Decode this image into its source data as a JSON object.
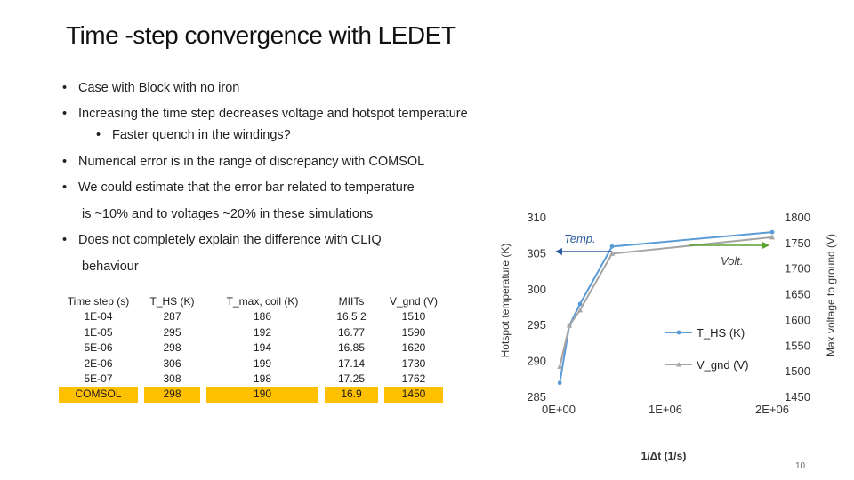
{
  "slide": {
    "title": "Time -step convergence with LEDET",
    "bullets": [
      "Case with Block with no iron",
      "Increasing the time step decreases voltage and hotspot temperature",
      "Faster quench in the windings?",
      "Numerical error is in the range of discrepancy with COMSOL",
      "We could estimate that the error bar related to temperature",
      "is ~10% and to voltages ~20% in these simulations",
      "Does not completely explain the difference with CLIQ",
      "behaviour"
    ],
    "bullet_glyph": "•",
    "page_number": "10"
  },
  "table": {
    "headers": [
      "Time step (s)",
      "T_HS (K)",
      "T_max,  coil (K)",
      "MIITs",
      "V_gnd (V)"
    ],
    "rows": [
      [
        "1E-04",
        "287",
        "186",
        "16.5 2",
        "1510"
      ],
      [
        "1E-05",
        "295",
        "192",
        "16.77",
        "1590"
      ],
      [
        "5E-06",
        "298",
        "194",
        "16.85",
        "1620"
      ],
      [
        "2E-06",
        "306",
        "199",
        "17.14",
        "1730"
      ],
      [
        "5E-07",
        "308",
        "198",
        "17.25",
        "1762"
      ],
      [
        "COMSOL",
        "298",
        "190",
        "16.9",
        "1450"
      ]
    ],
    "highlight_color": "#ffc000"
  },
  "chart_data": {
    "type": "line",
    "x_label": "1/Δt (1/s)",
    "y_left_label": "Hotspot temperature (K)",
    "y_right_label": "Max voltage to ground (V)",
    "x_ticks": [
      "0E+00",
      "1E+06",
      "2E+06"
    ],
    "x_range": [
      0,
      2000000
    ],
    "y_left_ticks": [
      "285",
      "290",
      "295",
      "300",
      "305",
      "310"
    ],
    "y_left_range": [
      285,
      310
    ],
    "y_right_ticks": [
      "1450",
      "1500",
      "1550",
      "1600",
      "1650",
      "1700",
      "1750",
      "1800"
    ],
    "y_right_range": [
      1450,
      1800
    ],
    "x": [
      10000,
      100000,
      200000,
      500000,
      2000000
    ],
    "series": [
      {
        "name": "T_HS (K)",
        "axis": "left",
        "color": "#5b9bd5",
        "values": [
          287,
          295,
          298,
          306,
          308
        ]
      },
      {
        "name": "V_gnd (V)",
        "axis": "right",
        "color": "#a5a5a5",
        "values": [
          1510,
          1590,
          1620,
          1730,
          1762
        ]
      }
    ],
    "annotations": [
      {
        "text": "Temp.",
        "arrow": "left",
        "color": "#2e5c9e"
      },
      {
        "text": "Volt.",
        "arrow": "right",
        "color": "#5aa02c"
      }
    ]
  }
}
